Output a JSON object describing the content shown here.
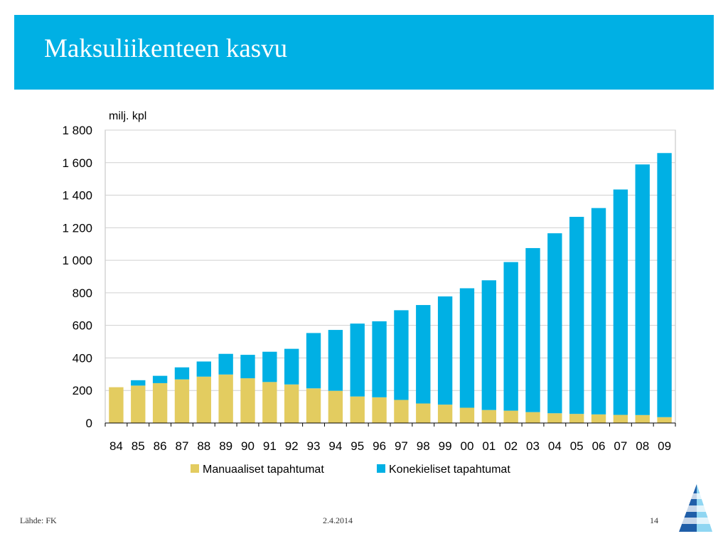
{
  "slide": {
    "title": "Maksuliikenteen kasvu",
    "source": "Lähde: FK",
    "date": "2.4.2014",
    "page_number": "14"
  },
  "colors": {
    "header_band": "#00b0e4",
    "series_manual": "#e3cc60",
    "series_machine": "#00b0e4",
    "logo_dark": "#1f5ea8",
    "logo_light": "#8fd6f2"
  },
  "icons": {
    "logo": "pyramid-logo-icon"
  },
  "chart_data": {
    "type": "bar",
    "stacked": true,
    "unit_label": "milj. kpl",
    "categories": [
      "84",
      "85",
      "86",
      "87",
      "88",
      "89",
      "90",
      "91",
      "92",
      "93",
      "94",
      "95",
      "96",
      "97",
      "98",
      "99",
      "00",
      "01",
      "02",
      "03",
      "04",
      "05",
      "06",
      "07",
      "08",
      "09"
    ],
    "series": [
      {
        "name": "Manuaaliset tapahtumat",
        "color": "#e3cc60",
        "values": [
          220,
          230,
          245,
          268,
          285,
          298,
          275,
          252,
          237,
          213,
          198,
          163,
          158,
          142,
          120,
          113,
          94,
          80,
          76,
          67,
          60,
          56,
          53,
          50,
          49,
          36
        ]
      },
      {
        "name": "Konekieliset tapahtumat",
        "color": "#00b0e4",
        "values": [
          0,
          33,
          45,
          74,
          93,
          127,
          144,
          186,
          219,
          340,
          374,
          448,
          467,
          551,
          605,
          665,
          734,
          797,
          913,
          1008,
          1106,
          1211,
          1268,
          1385,
          1540,
          1623
        ]
      }
    ],
    "ylim": [
      0,
      1800
    ],
    "yticks": [
      0,
      200,
      400,
      600,
      800,
      1000,
      1200,
      1400,
      1600,
      1800
    ],
    "ytick_labels": [
      "0",
      "200",
      "400",
      "600",
      "800",
      "1 000",
      "1 200",
      "1 400",
      "1 600",
      "1 800"
    ],
    "grid": true,
    "legend_position": "bottom"
  }
}
